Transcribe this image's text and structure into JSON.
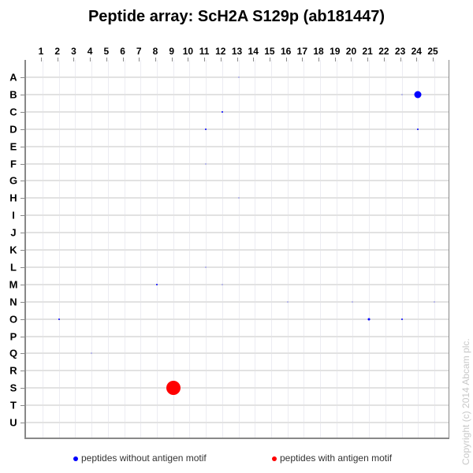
{
  "title": "Peptide array:  ScH2A S129p (ab181447)",
  "legend": {
    "without": {
      "label": "peptides without antigen motif",
      "color": "#0000ff"
    },
    "with": {
      "label": "peptides with antigen motif",
      "color": "#ff0000"
    }
  },
  "copyright": "Copyright (c) 2014 Abcam plc.",
  "chart_data": {
    "type": "scatter",
    "title": "Peptide array:  ScH2A S129p (ab181447)",
    "x_categories": [
      "1",
      "2",
      "3",
      "4",
      "5",
      "6",
      "7",
      "8",
      "9",
      "10",
      "11",
      "12",
      "13",
      "14",
      "15",
      "16",
      "17",
      "18",
      "19",
      "20",
      "21",
      "22",
      "23",
      "24",
      "25"
    ],
    "y_categories": [
      "A",
      "B",
      "C",
      "D",
      "E",
      "F",
      "G",
      "H",
      "I",
      "J",
      "K",
      "L",
      "M",
      "N",
      "O",
      "P",
      "Q",
      "R",
      "S",
      "T",
      "U"
    ],
    "grid": true,
    "legend_position": "bottom",
    "points": [
      {
        "row": "A",
        "col": 13,
        "size": 1,
        "series": "without"
      },
      {
        "row": "B",
        "col": 23,
        "size": 1,
        "series": "without"
      },
      {
        "row": "B",
        "col": 24,
        "size": 9,
        "series": "without"
      },
      {
        "row": "C",
        "col": 12,
        "size": 2,
        "series": "without"
      },
      {
        "row": "D",
        "col": 11,
        "size": 2,
        "series": "without"
      },
      {
        "row": "D",
        "col": 24,
        "size": 2,
        "series": "without"
      },
      {
        "row": "F",
        "col": 11,
        "size": 1,
        "series": "without"
      },
      {
        "row": "H",
        "col": 13,
        "size": 1,
        "series": "without"
      },
      {
        "row": "L",
        "col": 11,
        "size": 1,
        "series": "without"
      },
      {
        "row": "M",
        "col": 8,
        "size": 2,
        "series": "without"
      },
      {
        "row": "M",
        "col": 12,
        "size": 1,
        "series": "without"
      },
      {
        "row": "N",
        "col": 16,
        "size": 1,
        "series": "without"
      },
      {
        "row": "N",
        "col": 20,
        "size": 1,
        "series": "without"
      },
      {
        "row": "N",
        "col": 25,
        "size": 1,
        "series": "without"
      },
      {
        "row": "O",
        "col": 2,
        "size": 2,
        "series": "without"
      },
      {
        "row": "O",
        "col": 21,
        "size": 3,
        "series": "without"
      },
      {
        "row": "O",
        "col": 23,
        "size": 2,
        "series": "without"
      },
      {
        "row": "Q",
        "col": 4,
        "size": 1,
        "series": "without"
      },
      {
        "row": "S",
        "col": 9,
        "size": 18,
        "series": "with"
      }
    ]
  }
}
